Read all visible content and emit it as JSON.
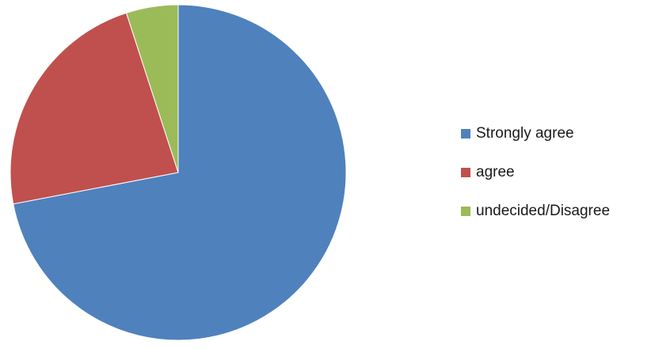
{
  "chart_data": {
    "type": "pie",
    "categories": [
      "Strongly agree",
      "agree",
      "undecided/Disagree"
    ],
    "values": [
      72,
      23,
      5
    ],
    "colors": [
      "#4F81BD",
      "#C0504D",
      "#9BBB59"
    ],
    "title": "",
    "legend": {
      "placement": "right",
      "items": [
        {
          "label": "Strongly agree",
          "color": "#4F81BD"
        },
        {
          "label": "agree",
          "color": "#C0504D"
        },
        {
          "label": "undecided/Disagree",
          "color": "#9BBB59"
        }
      ]
    }
  }
}
